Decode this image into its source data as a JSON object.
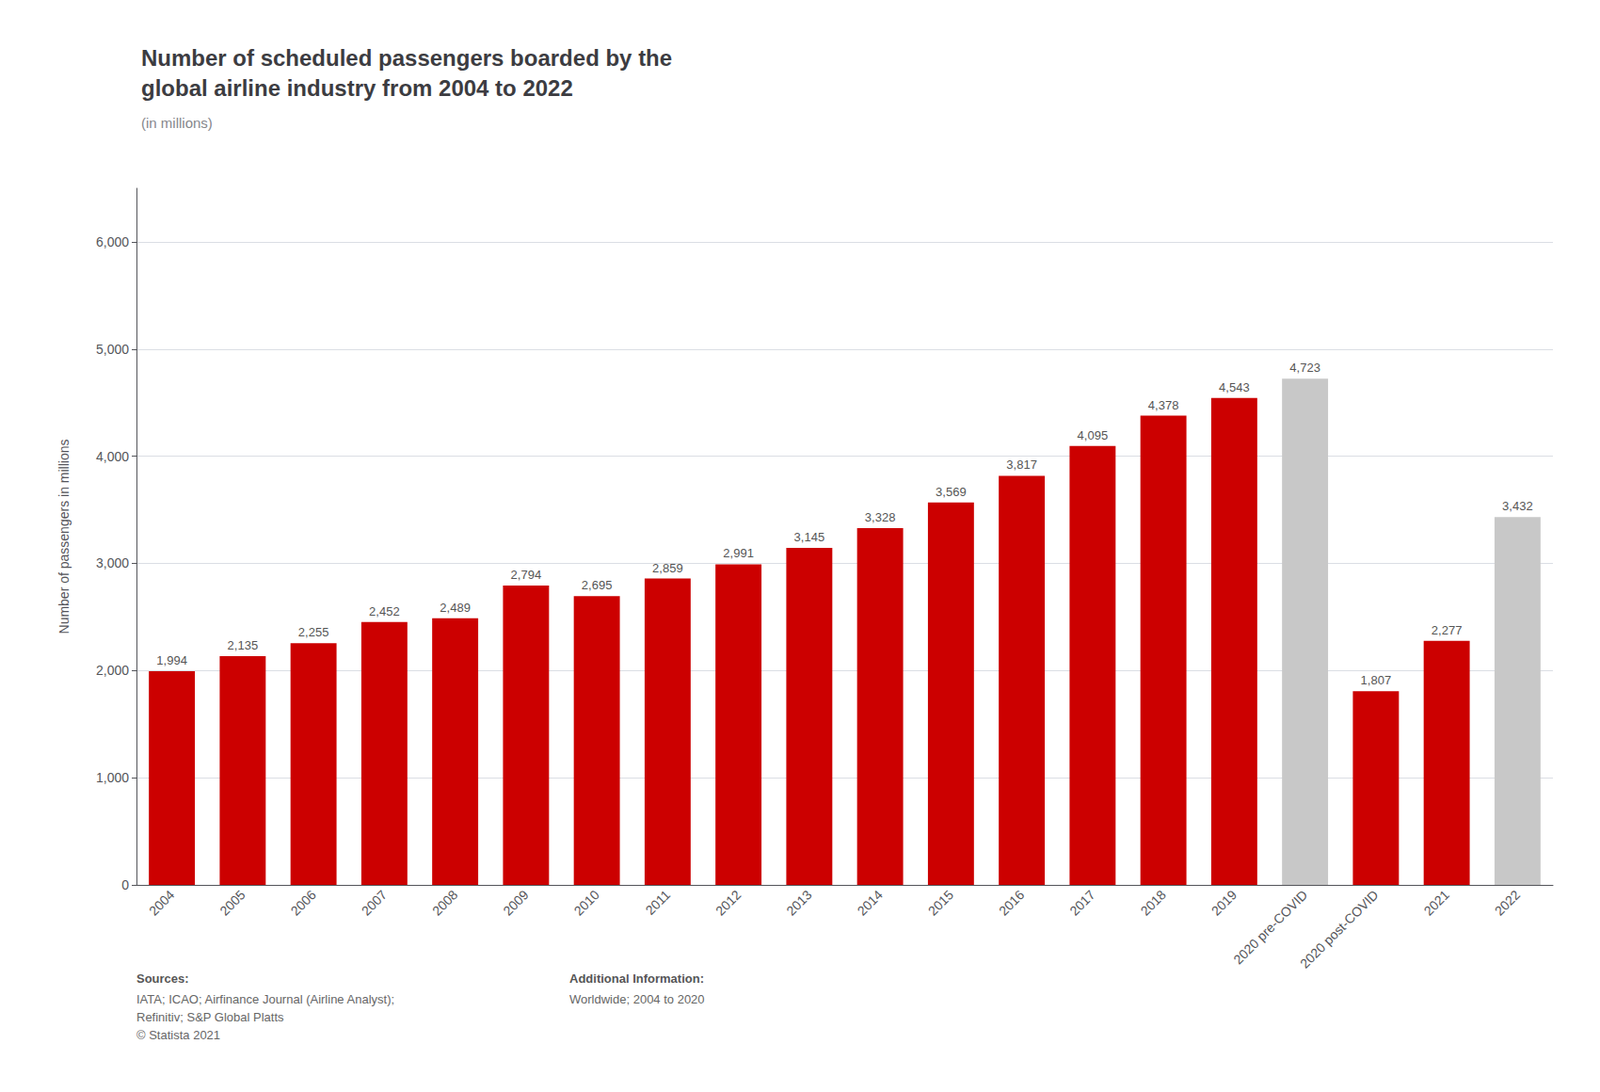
{
  "chart_data": {
    "type": "bar",
    "title": "Number of scheduled passengers boarded by the\nglobal airline industry from 2004 to 2022",
    "subtitle": "(in millions)",
    "ylabel": "Number of passengers in millions",
    "categories": [
      "2004",
      "2005",
      "2006",
      "2007",
      "2008",
      "2009",
      "2010",
      "2011",
      "2012",
      "2013",
      "2014",
      "2015",
      "2016",
      "2017",
      "2018",
      "2019",
      "2020 pre-COVID",
      "2020 post-COVID",
      "2021",
      "2022"
    ],
    "values": [
      1994,
      2135,
      2255,
      2452,
      2489,
      2794,
      2695,
      2859,
      2991,
      3145,
      3328,
      3569,
      3817,
      4095,
      4378,
      4543,
      4723,
      1807,
      2277,
      3432
    ],
    "value_labels": [
      "1,994",
      "2,135",
      "2,255",
      "2,452",
      "2,489",
      "2,794",
      "2,695",
      "2,859",
      "2,991",
      "3,145",
      "3,328",
      "3,569",
      "3,817",
      "4,095",
      "4,378",
      "4,543",
      "4,723",
      "1,807",
      "2,277",
      "3,432"
    ],
    "colors": [
      "#cc0000",
      "#cc0000",
      "#cc0000",
      "#cc0000",
      "#cc0000",
      "#cc0000",
      "#cc0000",
      "#cc0000",
      "#cc0000",
      "#cc0000",
      "#cc0000",
      "#cc0000",
      "#cc0000",
      "#cc0000",
      "#cc0000",
      "#cc0000",
      "#c8c8c8",
      "#cc0000",
      "#cc0000",
      "#c8c8c8"
    ],
    "data_labels": true,
    "ylim": [
      0,
      6500
    ],
    "yticks": [
      0,
      {
        "value": 1000,
        "label": "1,000"
      },
      {
        "value": 2000,
        "label": "2,000"
      },
      {
        "value": 3000,
        "label": "3,000"
      },
      {
        "value": 4000,
        "label": "4,000"
      },
      {
        "value": 5000,
        "label": "5,000"
      },
      {
        "value": 6000,
        "label": "6,000"
      }
    ],
    "grid": true,
    "annotations": [
      "Sources:",
      "IATA; ICAO; Airfinance Journal (Airline Analyst);\nRefinitiv; S&P Global Platts\n© Statista 2021",
      "Additional Information:",
      "Worldwide; 2004 to 2020"
    ]
  }
}
